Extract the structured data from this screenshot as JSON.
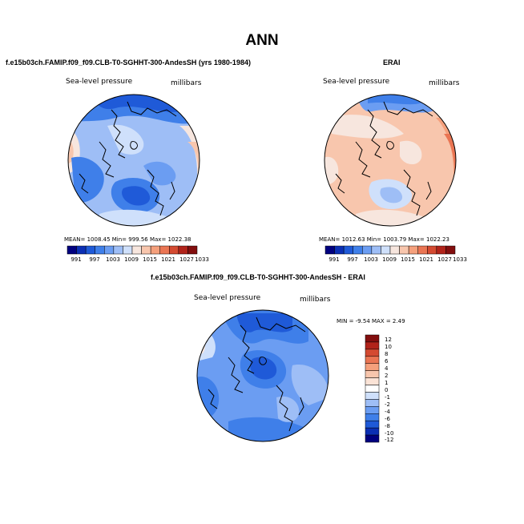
{
  "title": "ANN",
  "panels": {
    "model": {
      "subtitle": "f.e15b03ch.FAMIP.f09_f09.CLB-T0-SGHHT-300-AndesSH (yrs 1980-1984)",
      "variable": "Sea-level pressure",
      "units": "millibars",
      "stats": "MEAN= 1008.45   Min= 999.56   Max= 1022.38",
      "palette": [
        "#00007f",
        "#0b2fb4",
        "#1f5ad8",
        "#3f7fe9",
        "#6b9df2",
        "#9ebef6",
        "#cfe0fb",
        "#f7e6de",
        "#f8c6ad",
        "#f5a07c",
        "#ea7553",
        "#d44a31",
        "#b1231a",
        "#820e0e"
      ]
    },
    "obs": {
      "subtitle": "ERAI",
      "variable": "Sea-level pressure",
      "units": "millibars",
      "stats": "MEAN= 1012.63   Min= 1003.79   Max= 1022.23",
      "palette": [
        "#00007f",
        "#0b2fb4",
        "#1f5ad8",
        "#3f7fe9",
        "#6b9df2",
        "#9ebef6",
        "#cfe0fb",
        "#f7e6de",
        "#f8c6ad",
        "#f5a07c",
        "#ea7553",
        "#d44a31",
        "#b1231a",
        "#820e0e"
      ]
    },
    "diff": {
      "subtitle": "f.e15b03ch.FAMIP.f09_f09.CLB-T0-SGHHT-300-AndesSH - ERAI",
      "variable": "Sea-level pressure",
      "units": "millibars",
      "stats": "MIN =   -9.54  MAX =     2.49"
    }
  },
  "colorbar_h": {
    "labels": [
      "991",
      "997",
      "1003",
      "1009",
      "1015",
      "1021",
      "1027",
      "1033"
    ]
  },
  "colorbar_v": {
    "labels": [
      "12",
      "10",
      "8",
      "6",
      "4",
      "2",
      "1",
      "0",
      "-1",
      "-2",
      "-4",
      "-6",
      "-8",
      "-10",
      "-12"
    ],
    "colors": [
      "#820e0e",
      "#b1231a",
      "#d44a31",
      "#ea7553",
      "#f5a07c",
      "#f8c6ad",
      "#fbe3d6",
      "#ffffff",
      "#cfe0fb",
      "#9ebef6",
      "#6b9df2",
      "#3f7fe9",
      "#1f5ad8",
      "#0b2fb4",
      "#00007f"
    ]
  }
}
